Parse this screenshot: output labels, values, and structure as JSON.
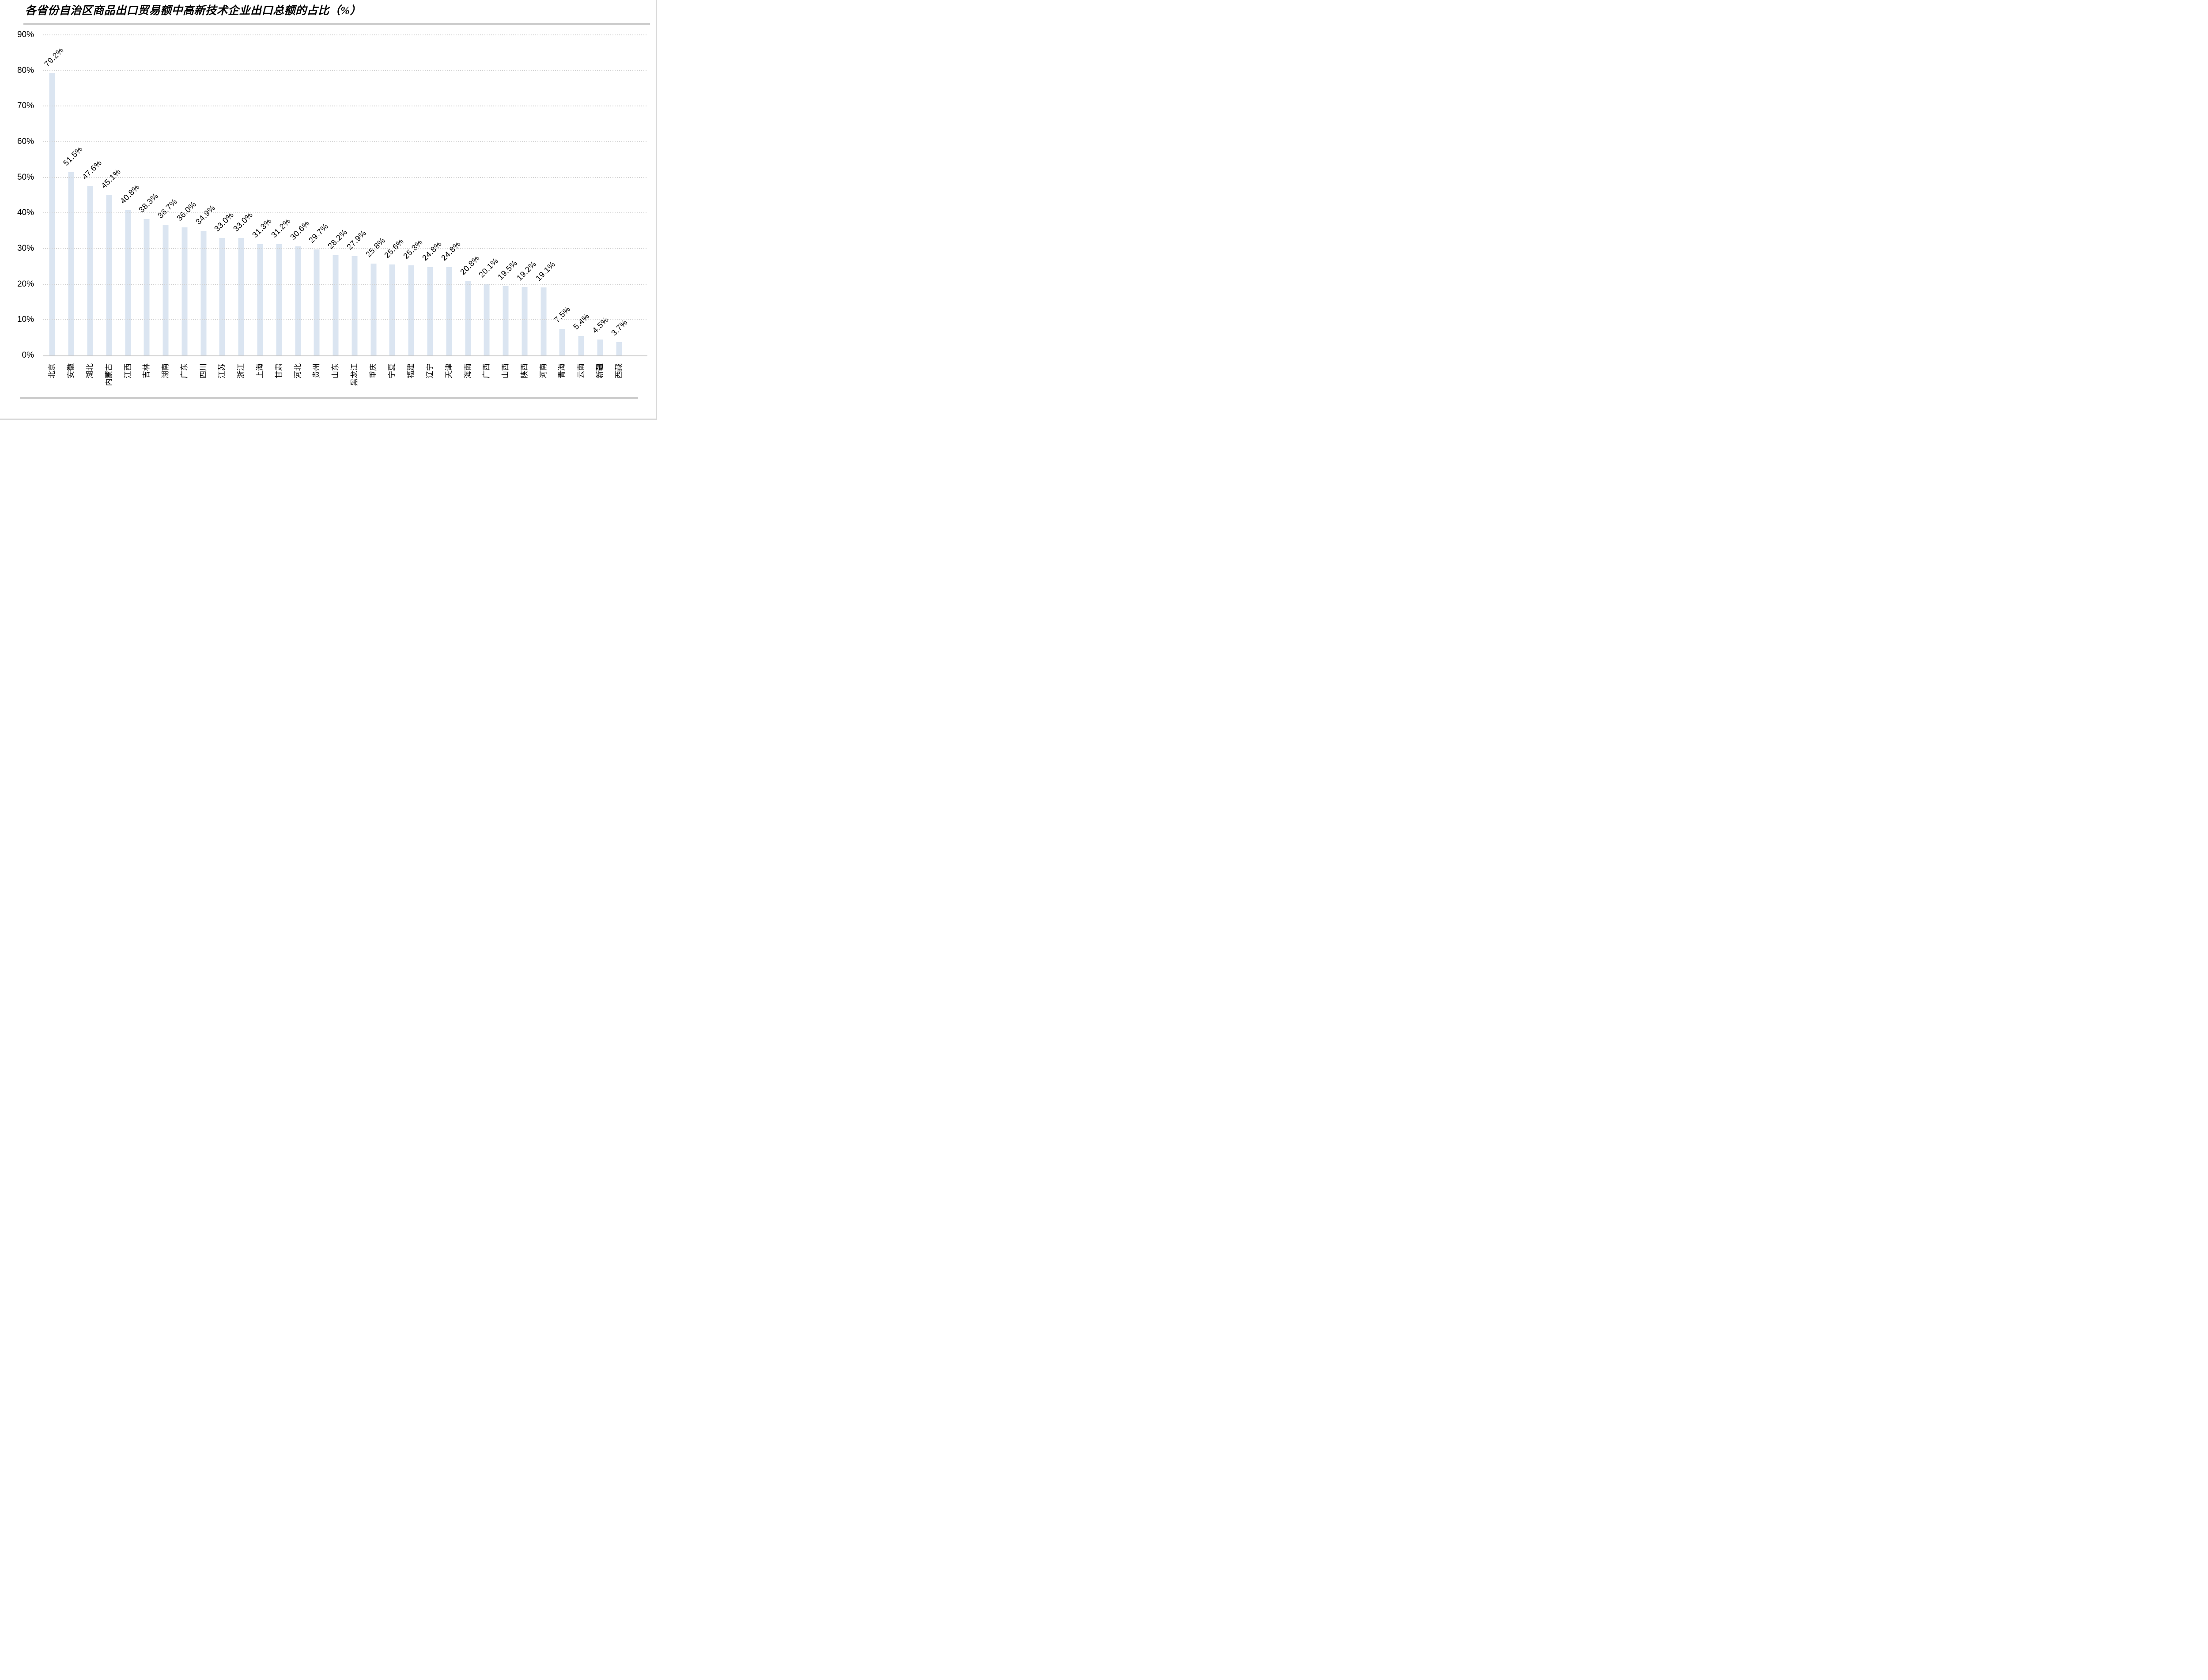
{
  "colors": {
    "bar": "#DBE5F1",
    "gridline": "#D4D4D4",
    "axis_line": "#C6C6C6",
    "rule": "#CCCCCC",
    "text": "#000000",
    "background": "#FFFFFF"
  },
  "chart_data": {
    "type": "bar",
    "title": "各省份自治区商品出口贸易额中高新技术企业出口总额的占比（%）",
    "categories": [
      "北京",
      "安徽",
      "湖北",
      "内蒙古",
      "江西",
      "吉林",
      "湖南",
      "广东",
      "四川",
      "江苏",
      "浙江",
      "上海",
      "甘肃",
      "河北",
      "贵州",
      "山东",
      "黑龙江",
      "重庆",
      "宁夏",
      "福建",
      "辽宁",
      "天津",
      "海南",
      "广西",
      "山西",
      "陕西",
      "河南",
      "青海",
      "云南",
      "新疆",
      "西藏"
    ],
    "values": [
      79.2,
      51.5,
      47.6,
      45.1,
      40.8,
      38.3,
      36.7,
      36.0,
      34.9,
      33.0,
      33.0,
      31.3,
      31.2,
      30.6,
      29.7,
      28.2,
      27.9,
      25.8,
      25.6,
      25.3,
      24.8,
      24.8,
      20.8,
      20.1,
      19.5,
      19.2,
      19.1,
      7.5,
      5.4,
      4.5,
      3.7
    ],
    "value_labels": [
      "79.2%",
      "51.5%",
      "47.6%",
      "45.1%",
      "40.8%",
      "38.3%",
      "36.7%",
      "36.0%",
      "34.9%",
      "33.0%",
      "33.0%",
      "31.3%",
      "31.2%",
      "30.6%",
      "29.7%",
      "28.2%",
      "27.9%",
      "25.8%",
      "25.6%",
      "25.3%",
      "24.8%",
      "24.8%",
      "20.8%",
      "20.1%",
      "19.5%",
      "19.2%",
      "19.1%",
      "7.5%",
      "5.4%",
      "4.5%",
      "3.7%"
    ],
    "xlabel": "",
    "ylabel": "",
    "ylim": [
      0,
      90
    ],
    "ytick_values": [
      0,
      10,
      20,
      30,
      40,
      50,
      60,
      70,
      80,
      90
    ],
    "ytick_labels": [
      "0%",
      "10%",
      "20%",
      "30%",
      "40%",
      "50%",
      "60%",
      "70%",
      "80%",
      "90%"
    ],
    "grid": "horizontal-dashed",
    "legend_position": "none",
    "bar_label_rotation_deg": -45,
    "xtick_rotation_deg": -90,
    "trailing_empty_slots": 1
  }
}
